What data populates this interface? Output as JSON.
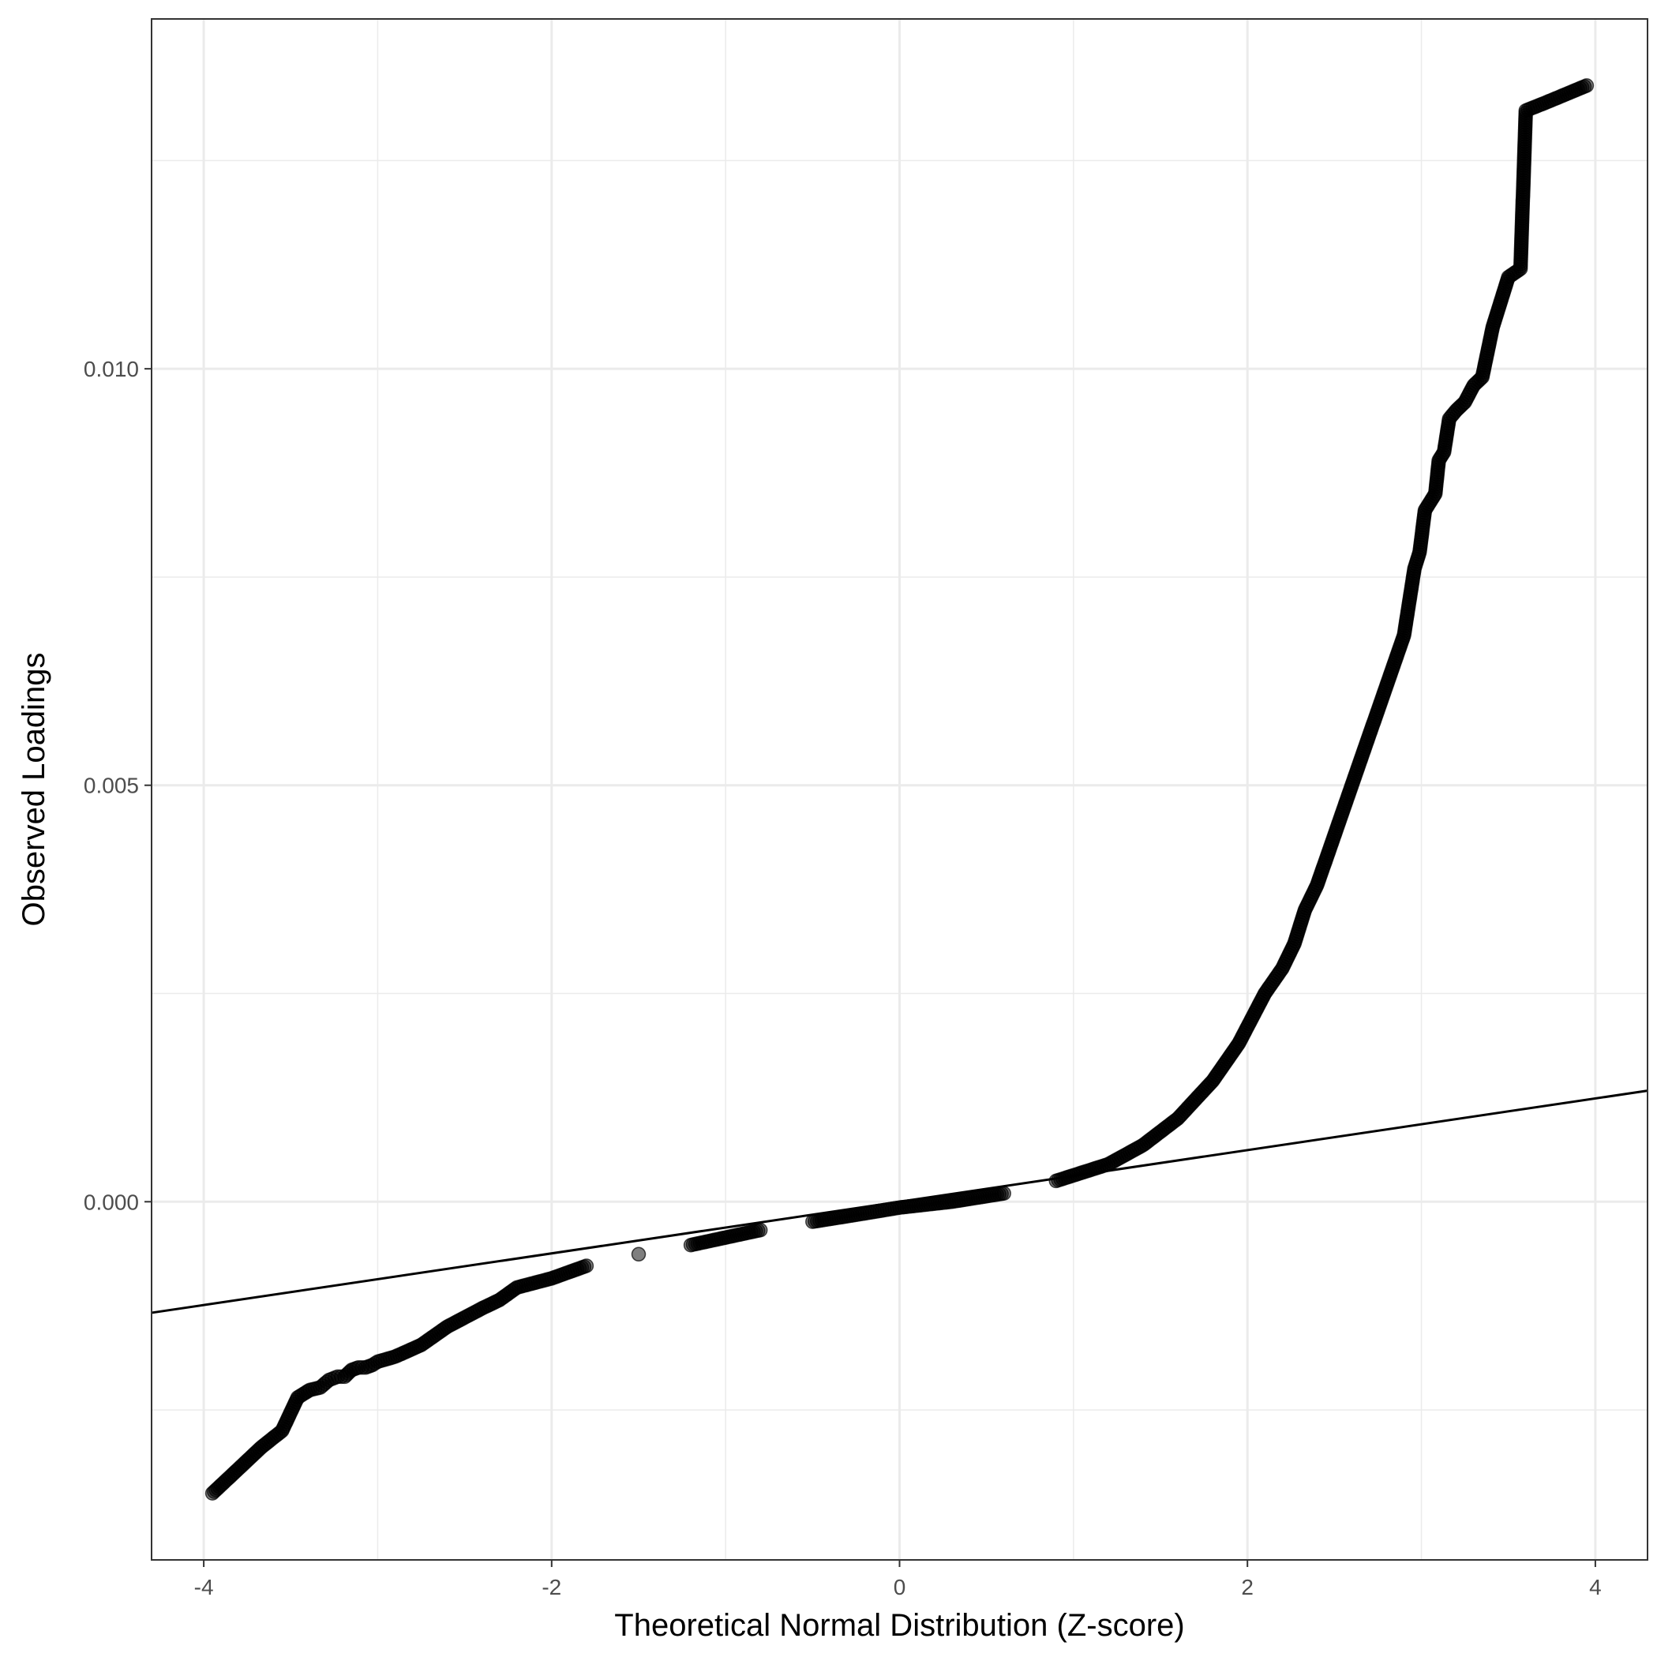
{
  "chart_data": {
    "type": "scatter",
    "title": "",
    "xlabel": "Theoretical Normal Distribution (Z-score)",
    "ylabel": "Observed Loadings",
    "xlim": [
      -4.3,
      4.3
    ],
    "ylim": [
      -0.0043,
      0.0142
    ],
    "x_ticks": [
      {
        "value": -4,
        "label": "-4"
      },
      {
        "value": -2,
        "label": "-2"
      },
      {
        "value": 0,
        "label": "0"
      },
      {
        "value": 2,
        "label": "2"
      },
      {
        "value": 4,
        "label": "4"
      }
    ],
    "y_ticks": [
      {
        "value": 0.0,
        "label": "0.000"
      },
      {
        "value": 0.005,
        "label": "0.005"
      },
      {
        "value": 0.01,
        "label": "0.010"
      }
    ],
    "grid": true,
    "legend": "none",
    "reference_line": {
      "intercept": 0.0,
      "slope": 0.00031
    },
    "point_color": "#000000",
    "point_opacity": 0.5,
    "points": [
      [
        -3.95,
        -0.0035
      ],
      [
        -3.67,
        -0.00295
      ],
      [
        -3.55,
        -0.00275
      ],
      [
        -3.46,
        -0.00235
      ],
      [
        -3.39,
        -0.00226
      ],
      [
        -3.33,
        -0.00223
      ],
      [
        -3.28,
        -0.00214
      ],
      [
        -3.23,
        -0.0021
      ],
      [
        -3.19,
        -0.0021
      ],
      [
        -3.15,
        -0.00202
      ],
      [
        -3.11,
        -0.00199
      ],
      [
        -3.07,
        -0.00199
      ],
      [
        -3.03,
        -0.00196
      ],
      [
        -3.0,
        -0.00192
      ],
      [
        -2.9,
        -0.00186
      ],
      [
        -2.75,
        -0.00172
      ],
      [
        -2.6,
        -0.0015
      ],
      [
        -2.4,
        -0.00128
      ],
      [
        -2.3,
        -0.00118
      ],
      [
        -2.2,
        -0.00103
      ],
      [
        -2.0,
        -0.00092
      ],
      [
        -1.8,
        -0.00077
      ],
      [
        -1.5,
        -0.00063
      ],
      [
        -1.2,
        -0.00052
      ],
      [
        -1.0,
        -0.00043
      ],
      [
        -0.8,
        -0.00034
      ],
      [
        -0.5,
        -0.00024
      ],
      [
        -0.2,
        -0.00014
      ],
      [
        0.0,
        -7e-05
      ],
      [
        0.3,
        0.0
      ],
      [
        0.6,
        0.0001
      ],
      [
        0.9,
        0.00025
      ],
      [
        1.2,
        0.00045
      ],
      [
        1.4,
        0.00068
      ],
      [
        1.6,
        0.001
      ],
      [
        1.8,
        0.00145
      ],
      [
        1.95,
        0.0019
      ],
      [
        2.1,
        0.0025
      ],
      [
        2.2,
        0.0028
      ],
      [
        2.27,
        0.0031
      ],
      [
        2.33,
        0.0035
      ],
      [
        2.4,
        0.0038
      ],
      [
        2.45,
        0.0041
      ],
      [
        2.5,
        0.0044
      ],
      [
        2.55,
        0.0047
      ],
      [
        2.6,
        0.005
      ],
      [
        2.65,
        0.0053
      ],
      [
        2.7,
        0.0056
      ],
      [
        2.75,
        0.0059
      ],
      [
        2.8,
        0.0062
      ],
      [
        2.85,
        0.0065
      ],
      [
        2.9,
        0.0068
      ],
      [
        2.93,
        0.0072
      ],
      [
        2.96,
        0.0076
      ],
      [
        2.99,
        0.0078
      ],
      [
        3.02,
        0.0083
      ],
      [
        3.05,
        0.0084
      ],
      [
        3.08,
        0.0085
      ],
      [
        3.1,
        0.0089
      ],
      [
        3.13,
        0.009
      ],
      [
        3.16,
        0.0094
      ],
      [
        3.2,
        0.0095
      ],
      [
        3.25,
        0.0096
      ],
      [
        3.3,
        0.0098
      ],
      [
        3.35,
        0.0099
      ],
      [
        3.41,
        0.0105
      ],
      [
        3.5,
        0.0111
      ],
      [
        3.57,
        0.0112
      ],
      [
        3.6,
        0.0131
      ],
      [
        3.72,
        0.0132
      ],
      [
        3.95,
        0.0134
      ]
    ]
  }
}
